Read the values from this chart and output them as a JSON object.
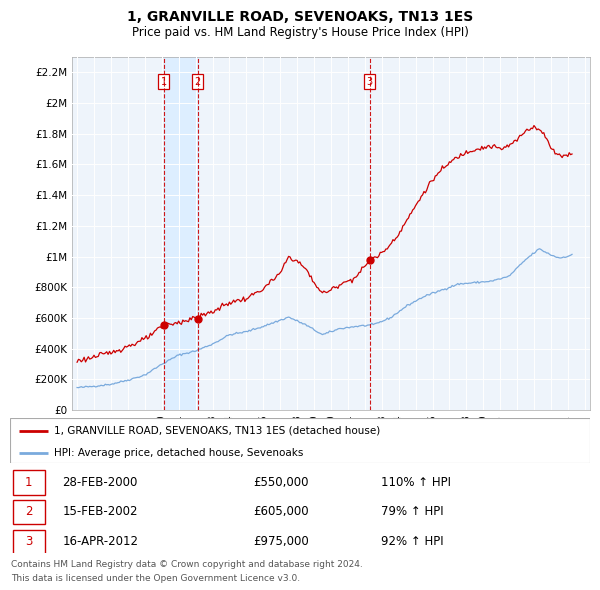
{
  "title": "1, GRANVILLE ROAD, SEVENOAKS, TN13 1ES",
  "subtitle": "Price paid vs. HM Land Registry's House Price Index (HPI)",
  "legend_line1": "1, GRANVILLE ROAD, SEVENOAKS, TN13 1ES (detached house)",
  "legend_line2": "HPI: Average price, detached house, Sevenoaks",
  "footer1": "Contains HM Land Registry data © Crown copyright and database right 2024.",
  "footer2": "This data is licensed under the Open Government Licence v3.0.",
  "transactions": [
    {
      "num": 1,
      "date": "28-FEB-2000",
      "price": "£550,000",
      "pct": "110% ↑ HPI",
      "year": 2000.12
    },
    {
      "num": 2,
      "date": "15-FEB-2002",
      "price": "£605,000",
      "pct": "79% ↑ HPI",
      "year": 2002.12
    },
    {
      "num": 3,
      "date": "16-APR-2012",
      "price": "£975,000",
      "pct": "92% ↑ HPI",
      "year": 2012.29
    }
  ],
  "red_color": "#cc0000",
  "blue_color": "#7aaadd",
  "shade_color": "#ddeeff",
  "dashed_color": "#cc0000",
  "bg_color": "#eef4fb",
  "ylim": [
    0,
    2300000
  ],
  "yticks": [
    0,
    200000,
    400000,
    600000,
    800000,
    1000000,
    1200000,
    1400000,
    1600000,
    1800000,
    2000000,
    2200000
  ],
  "ytick_labels": [
    "£0",
    "£200K",
    "£400K",
    "£600K",
    "£800K",
    "£1M",
    "£1.2M",
    "£1.4M",
    "£1.6M",
    "£1.8M",
    "£2M",
    "£2.2M"
  ],
  "xlim_start": 1994.7,
  "xlim_end": 2025.3
}
